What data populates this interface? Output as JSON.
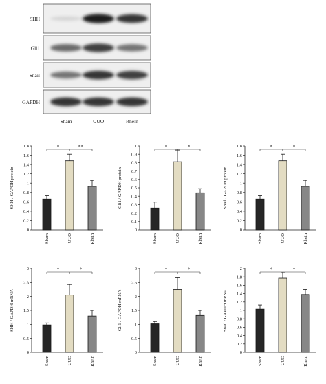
{
  "blot": {
    "rows": [
      "SHH",
      "Gli1",
      "Snail",
      "GAPDH"
    ],
    "lanes": [
      "Sham",
      "UUO",
      "Rhein"
    ],
    "intensity": [
      [
        0.1,
        0.95,
        0.85
      ],
      [
        0.6,
        0.8,
        0.55
      ],
      [
        0.55,
        0.85,
        0.8
      ],
      [
        0.85,
        0.85,
        0.85
      ]
    ]
  },
  "colors": {
    "sham": "#262626",
    "uuo": "#e3dcc2",
    "rhein": "#878787"
  },
  "chart_data": [
    {
      "type": "bar",
      "categories": [
        "Sham",
        "UUO",
        "Rhein"
      ],
      "values": [
        0.66,
        1.48,
        0.93
      ],
      "errors": [
        0.07,
        0.14,
        0.13
      ],
      "ylabel": "SHH / GAPDH protein",
      "ylim": [
        0,
        1.8
      ],
      "yticks": [
        "0",
        "0.2",
        "0.4",
        "0.6",
        "0.8",
        "1",
        "1.2",
        "1.4",
        "1.6",
        "1.8"
      ],
      "sig": [
        {
          "from": 0,
          "to": 1,
          "label": "*"
        },
        {
          "from": 1,
          "to": 2,
          "label": "**"
        }
      ]
    },
    {
      "type": "bar",
      "categories": [
        "Sham",
        "UUO",
        "Rhein"
      ],
      "values": [
        0.26,
        0.81,
        0.44
      ],
      "errors": [
        0.07,
        0.14,
        0.05
      ],
      "ylabel": "Gli1 / GAPDH protein",
      "ylim": [
        0,
        1
      ],
      "yticks": [
        "0",
        "0.1",
        "0.2",
        "0.3",
        "0.4",
        "0.5",
        "0.6",
        "0.7",
        "0.8",
        "0.9",
        "1"
      ],
      "sig": [
        {
          "from": 0,
          "to": 1,
          "label": "*"
        },
        {
          "from": 1,
          "to": 2,
          "label": "*"
        }
      ]
    },
    {
      "type": "bar",
      "categories": [
        "Sham",
        "UUO",
        "Rhein"
      ],
      "values": [
        0.66,
        1.48,
        0.93
      ],
      "errors": [
        0.07,
        0.14,
        0.13
      ],
      "ylabel": "Snail / GAPDH protein",
      "ylim": [
        0,
        1.8
      ],
      "yticks": [
        "0",
        "0.2",
        "0.4",
        "0.6",
        "0.8",
        "1",
        "1.2",
        "1.4",
        "1.6",
        "1.8"
      ],
      "sig": [
        {
          "from": 0,
          "to": 1,
          "label": "*"
        },
        {
          "from": 1,
          "to": 2,
          "label": "*"
        }
      ]
    },
    {
      "type": "bar",
      "categories": [
        "Sham",
        "UUO",
        "Rhein"
      ],
      "values": [
        0.98,
        2.05,
        1.3
      ],
      "errors": [
        0.07,
        0.38,
        0.2
      ],
      "ylabel": "SHH / GAPDH mRNA",
      "ylim": [
        0,
        3
      ],
      "yticks": [
        "0",
        "0.5",
        "1",
        "1.5",
        "2",
        "2.5",
        "3"
      ],
      "sig": [
        {
          "from": 0,
          "to": 1,
          "label": "*"
        },
        {
          "from": 1,
          "to": 2,
          "label": "*"
        }
      ]
    },
    {
      "type": "bar",
      "categories": [
        "Sham",
        "UUO",
        "Rhein"
      ],
      "values": [
        1.02,
        2.25,
        1.32
      ],
      "errors": [
        0.08,
        0.42,
        0.18
      ],
      "ylabel": "Gli1 / GAPDH mRNA",
      "ylim": [
        0,
        3
      ],
      "yticks": [
        "0",
        "0.5",
        "1",
        "1.5",
        "2",
        "2.5",
        "3"
      ],
      "sig": [
        {
          "from": 0,
          "to": 1,
          "label": "*"
        },
        {
          "from": 1,
          "to": 2,
          "label": "*"
        }
      ]
    },
    {
      "type": "bar",
      "categories": [
        "Sham",
        "UUO",
        "Rhein"
      ],
      "values": [
        1.03,
        1.77,
        1.38
      ],
      "errors": [
        0.1,
        0.13,
        0.12
      ],
      "ylabel": "Snail / GAPDH mRNA",
      "ylim": [
        0,
        2
      ],
      "yticks": [
        "0",
        "0.2",
        "0.4",
        "0.6",
        "0.8",
        "1",
        "1.2",
        "1.4",
        "1.6",
        "1.8",
        "2"
      ],
      "sig": [
        {
          "from": 0,
          "to": 1,
          "label": "*"
        },
        {
          "from": 1,
          "to": 2,
          "label": "*"
        }
      ]
    }
  ]
}
